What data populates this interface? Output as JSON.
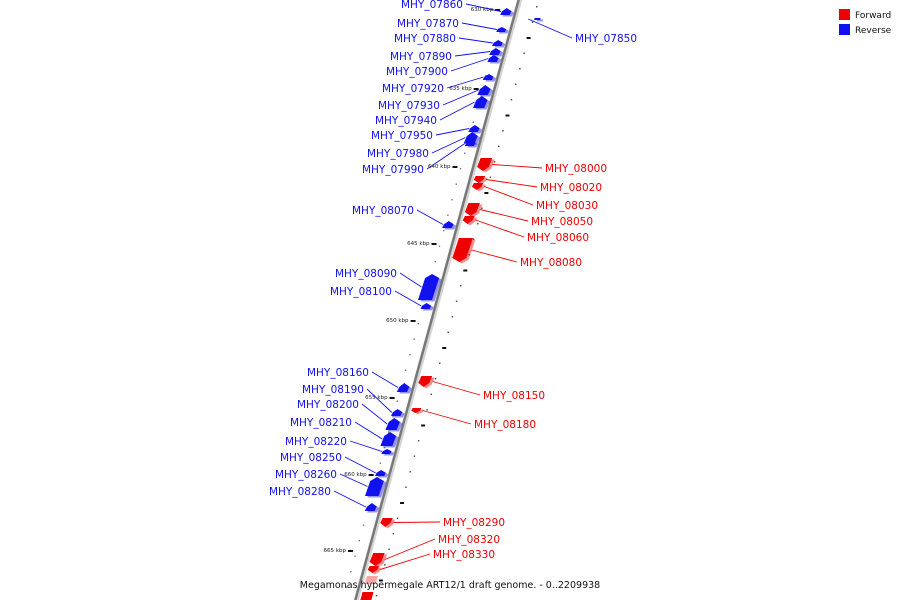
{
  "title": "Megamonas hypermegale ART12/1 draft genome. - 0..2209938",
  "legend": [
    {
      "label": "Forward",
      "color": "#ee0000"
    },
    {
      "label": "Reverse",
      "color": "#1111ee"
    }
  ],
  "kbp_ticks": [
    "630 kbp",
    "635 kbp",
    "640 kbp",
    "645 kbp",
    "650 kbp",
    "655 kbp",
    "660 kbp",
    "665 kbp"
  ],
  "genes": [
    {
      "name": "MHY_07860",
      "strand": "reverse"
    },
    {
      "name": "MHY_07870",
      "strand": "reverse"
    },
    {
      "name": "MHY_07880",
      "strand": "reverse"
    },
    {
      "name": "MHY_07890",
      "strand": "reverse"
    },
    {
      "name": "MHY_07900",
      "strand": "reverse"
    },
    {
      "name": "MHY_07920",
      "strand": "reverse"
    },
    {
      "name": "MHY_07930",
      "strand": "reverse"
    },
    {
      "name": "MHY_07940",
      "strand": "reverse"
    },
    {
      "name": "MHY_07950",
      "strand": "reverse"
    },
    {
      "name": "MHY_07980",
      "strand": "reverse"
    },
    {
      "name": "MHY_07990",
      "strand": "reverse"
    },
    {
      "name": "MHY_08070",
      "strand": "reverse"
    },
    {
      "name": "MHY_08090",
      "strand": "reverse"
    },
    {
      "name": "MHY_08100",
      "strand": "reverse"
    },
    {
      "name": "MHY_08160",
      "strand": "reverse"
    },
    {
      "name": "MHY_08190",
      "strand": "reverse"
    },
    {
      "name": "MHY_08200",
      "strand": "reverse"
    },
    {
      "name": "MHY_08210",
      "strand": "reverse"
    },
    {
      "name": "MHY_08220",
      "strand": "reverse"
    },
    {
      "name": "MHY_08250",
      "strand": "reverse"
    },
    {
      "name": "MHY_08260",
      "strand": "reverse"
    },
    {
      "name": "MHY_08280",
      "strand": "reverse"
    },
    {
      "name": "MHY_07850",
      "strand": "reverse"
    },
    {
      "name": "MHY_08000",
      "strand": "forward"
    },
    {
      "name": "MHY_08020",
      "strand": "forward"
    },
    {
      "name": "MHY_08030",
      "strand": "forward"
    },
    {
      "name": "MHY_08050",
      "strand": "forward"
    },
    {
      "name": "MHY_08060",
      "strand": "forward"
    },
    {
      "name": "MHY_08080",
      "strand": "forward"
    },
    {
      "name": "MHY_08150",
      "strand": "forward"
    },
    {
      "name": "MHY_08180",
      "strand": "forward"
    },
    {
      "name": "MHY_08290",
      "strand": "forward"
    },
    {
      "name": "MHY_08320",
      "strand": "forward"
    },
    {
      "name": "MHY_08330",
      "strand": "forward"
    }
  ]
}
